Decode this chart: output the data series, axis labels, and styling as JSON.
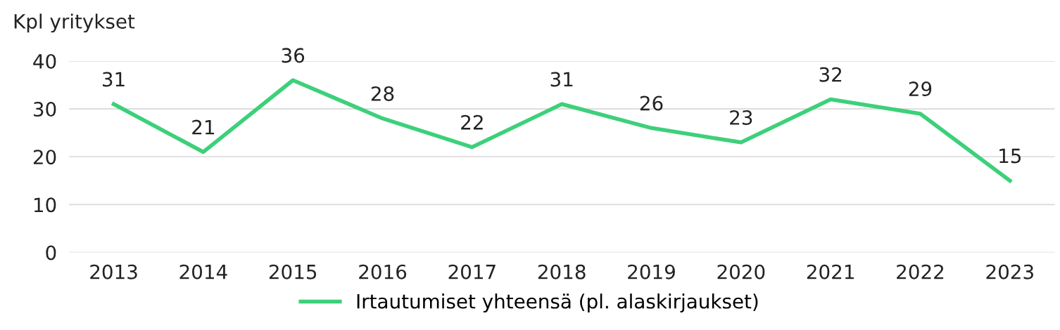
{
  "chart_data": {
    "type": "line",
    "ylabel": "Kpl yritykset",
    "categories": [
      "2013",
      "2014",
      "2015",
      "2016",
      "2017",
      "2018",
      "2019",
      "2020",
      "2021",
      "2022",
      "2023"
    ],
    "series": [
      {
        "name": "Irtautumiset yhteensä (pl. alaskirjaukset)",
        "color": "#3dd07a",
        "values": [
          31,
          21,
          36,
          28,
          22,
          31,
          26,
          23,
          32,
          29,
          15
        ]
      }
    ],
    "ylim": [
      0,
      40
    ],
    "yticks": [
      0,
      10,
      20,
      30,
      40
    ],
    "grid": "y",
    "legend": "bottom",
    "data_labels": true,
    "marker": "none",
    "line_style": "solid"
  }
}
